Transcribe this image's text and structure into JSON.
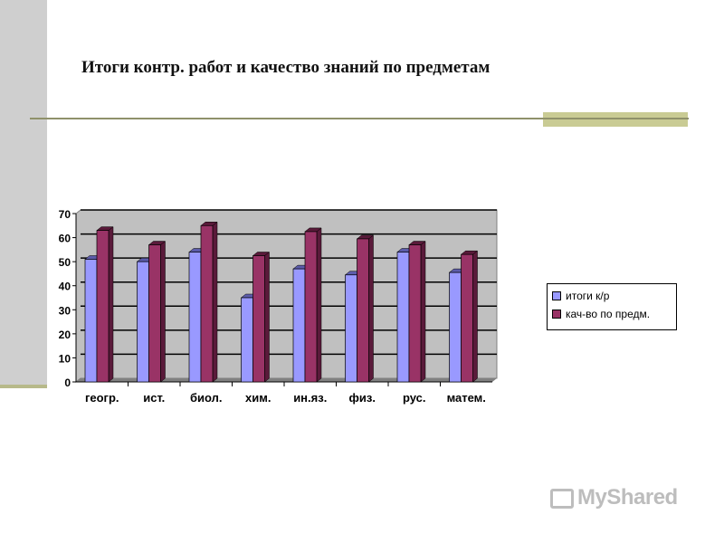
{
  "chart_data": {
    "type": "bar",
    "title": "Итоги контр. работ и качество знаний по предметам",
    "categories": [
      "геогр.",
      "ист.",
      "биол.",
      "хим.",
      "ин.яз.",
      "физ.",
      "рус.",
      "матем."
    ],
    "series": [
      {
        "name": "итоги к/р",
        "color": "#9999ff",
        "values": [
          51,
          50,
          54,
          35,
          47,
          44.5,
          54,
          45.5
        ]
      },
      {
        "name": "кач-во по предм.",
        "color": "#993366",
        "values": [
          63,
          57,
          65,
          52.5,
          62.5,
          59.5,
          57,
          53
        ]
      }
    ],
    "ylim": [
      0,
      70
    ],
    "yticks": [
      0,
      10,
      20,
      30,
      40,
      50,
      60,
      70
    ],
    "grid": true,
    "legend": "right",
    "plot_background": "#c0c0c0"
  },
  "watermark": "MyShared"
}
